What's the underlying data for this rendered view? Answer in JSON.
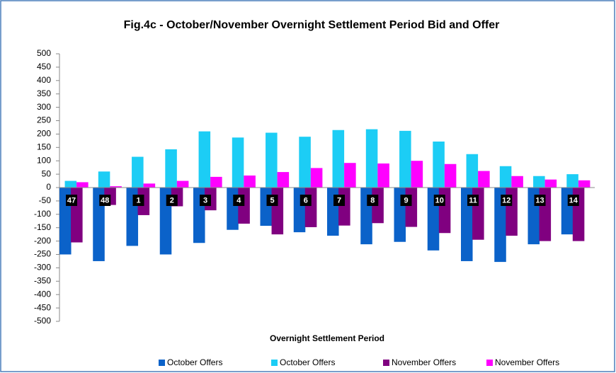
{
  "chart_data": {
    "type": "bar",
    "title": "Fig.4c - October/November Overnight Settlement Period Bid and Offer",
    "x_label": "Overnight Settlement Period",
    "categories": [
      "47",
      "48",
      "1",
      "2",
      "3",
      "4",
      "5",
      "6",
      "7",
      "8",
      "9",
      "10",
      "11",
      "12",
      "13",
      "14"
    ],
    "series": [
      {
        "name": "October Offers",
        "color": "#0b62c9",
        "values": [
          -250,
          -275,
          -218,
          -250,
          -207,
          -158,
          -143,
          -167,
          -180,
          -212,
          -203,
          -235,
          -275,
          -278,
          -212,
          -175
        ]
      },
      {
        "name": "October Offers",
        "color": "#1ccdf5",
        "values": [
          25,
          60,
          115,
          143,
          210,
          187,
          205,
          190,
          215,
          218,
          212,
          172,
          125,
          80,
          43,
          50
        ]
      },
      {
        "name": "November Offers",
        "color": "#800080",
        "values": [
          -205,
          -65,
          -103,
          -70,
          -85,
          -135,
          -175,
          -148,
          -142,
          -133,
          -147,
          -170,
          -195,
          -180,
          -200,
          -200
        ]
      },
      {
        "name": "November Offers",
        "color": "#ff00ff",
        "values": [
          20,
          5,
          15,
          25,
          40,
          45,
          58,
          73,
          92,
          90,
          100,
          88,
          62,
          43,
          30,
          27
        ]
      }
    ],
    "ylim": [
      -500,
      500
    ],
    "yticks": [
      -500,
      -450,
      -400,
      -350,
      -300,
      -250,
      -200,
      -150,
      -100,
      -50,
      0,
      50,
      100,
      150,
      200,
      250,
      300,
      350,
      400,
      450,
      500
    ],
    "legend": "bottom"
  }
}
